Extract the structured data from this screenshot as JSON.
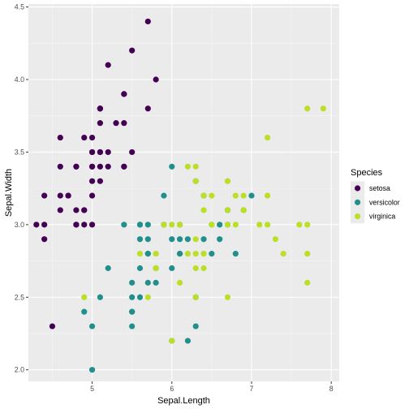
{
  "chart_data": {
    "type": "scatter",
    "title": "",
    "xlabel": "Sepal.Length",
    "ylabel": "Sepal.Width",
    "xlim": [
      4.2,
      8.1
    ],
    "ylim": [
      1.92,
      4.52
    ],
    "x_ticks": [
      5,
      6,
      7,
      8
    ],
    "y_ticks": [
      2.0,
      2.5,
      3.0,
      3.5,
      4.0,
      4.5
    ],
    "x_tick_labels": [
      "5",
      "6",
      "7",
      "8"
    ],
    "y_tick_labels": [
      "2.0",
      "2.5",
      "3.0",
      "3.5",
      "4.0",
      "4.5"
    ],
    "grid": true,
    "legend": {
      "title": "Species",
      "position": "right"
    },
    "series": [
      {
        "name": "setosa",
        "color": "#440154",
        "points": [
          [
            5.1,
            3.5
          ],
          [
            4.9,
            3.0
          ],
          [
            4.7,
            3.2
          ],
          [
            4.6,
            3.1
          ],
          [
            5.0,
            3.6
          ],
          [
            5.4,
            3.9
          ],
          [
            4.6,
            3.4
          ],
          [
            5.0,
            3.4
          ],
          [
            4.4,
            2.9
          ],
          [
            4.9,
            3.1
          ],
          [
            5.4,
            3.7
          ],
          [
            4.8,
            3.4
          ],
          [
            4.8,
            3.0
          ],
          [
            4.3,
            3.0
          ],
          [
            5.8,
            4.0
          ],
          [
            5.7,
            4.4
          ],
          [
            5.4,
            3.9
          ],
          [
            5.1,
            3.5
          ],
          [
            5.7,
            3.8
          ],
          [
            5.1,
            3.8
          ],
          [
            5.4,
            3.4
          ],
          [
            5.1,
            3.7
          ],
          [
            4.6,
            3.6
          ],
          [
            5.1,
            3.3
          ],
          [
            4.8,
            3.4
          ],
          [
            5.0,
            3.0
          ],
          [
            5.0,
            3.4
          ],
          [
            5.2,
            3.5
          ],
          [
            5.2,
            3.4
          ],
          [
            4.7,
            3.2
          ],
          [
            4.8,
            3.1
          ],
          [
            5.4,
            3.4
          ],
          [
            5.2,
            4.1
          ],
          [
            5.5,
            4.2
          ],
          [
            4.9,
            3.1
          ],
          [
            5.0,
            3.2
          ],
          [
            5.5,
            3.5
          ],
          [
            4.9,
            3.6
          ],
          [
            4.4,
            3.0
          ],
          [
            5.1,
            3.4
          ],
          [
            5.0,
            3.5
          ],
          [
            4.5,
            2.3
          ],
          [
            4.4,
            3.2
          ],
          [
            5.0,
            3.5
          ],
          [
            5.1,
            3.8
          ],
          [
            4.8,
            3.0
          ],
          [
            5.1,
            3.8
          ],
          [
            4.6,
            3.2
          ],
          [
            5.3,
            3.7
          ],
          [
            5.0,
            3.3
          ]
        ]
      },
      {
        "name": "versicolor",
        "color": "#21908C",
        "points": [
          [
            7.0,
            3.2
          ],
          [
            6.4,
            3.2
          ],
          [
            6.9,
            3.1
          ],
          [
            5.5,
            2.3
          ],
          [
            6.5,
            2.8
          ],
          [
            5.7,
            2.8
          ],
          [
            6.3,
            3.3
          ],
          [
            4.9,
            2.4
          ],
          [
            6.6,
            2.9
          ],
          [
            5.2,
            2.7
          ],
          [
            5.0,
            2.0
          ],
          [
            5.9,
            3.0
          ],
          [
            6.0,
            2.2
          ],
          [
            6.1,
            2.9
          ],
          [
            5.6,
            2.9
          ],
          [
            6.7,
            3.1
          ],
          [
            5.6,
            3.0
          ],
          [
            5.8,
            2.7
          ],
          [
            6.2,
            2.2
          ],
          [
            5.6,
            2.5
          ],
          [
            5.9,
            3.2
          ],
          [
            6.1,
            2.8
          ],
          [
            6.3,
            2.5
          ],
          [
            6.1,
            2.8
          ],
          [
            6.4,
            2.9
          ],
          [
            6.6,
            3.0
          ],
          [
            6.8,
            2.8
          ],
          [
            6.7,
            3.0
          ],
          [
            6.0,
            2.9
          ],
          [
            5.7,
            2.6
          ],
          [
            5.5,
            2.4
          ],
          [
            5.5,
            2.4
          ],
          [
            5.8,
            2.7
          ],
          [
            6.0,
            2.7
          ],
          [
            5.4,
            3.0
          ],
          [
            6.0,
            3.4
          ],
          [
            6.7,
            3.1
          ],
          [
            6.3,
            2.3
          ],
          [
            5.6,
            3.0
          ],
          [
            5.5,
            2.5
          ],
          [
            5.5,
            2.6
          ],
          [
            6.1,
            3.0
          ],
          [
            5.8,
            2.6
          ],
          [
            5.0,
            2.3
          ],
          [
            5.6,
            2.7
          ],
          [
            5.7,
            3.0
          ],
          [
            5.7,
            2.9
          ],
          [
            6.2,
            2.9
          ],
          [
            5.1,
            2.5
          ],
          [
            5.7,
            2.8
          ]
        ]
      },
      {
        "name": "virginica",
        "color": "#BBDF27",
        "points": [
          [
            6.3,
            3.3
          ],
          [
            5.8,
            2.7
          ],
          [
            7.1,
            3.0
          ],
          [
            6.3,
            2.9
          ],
          [
            6.5,
            3.0
          ],
          [
            7.6,
            3.0
          ],
          [
            4.9,
            2.5
          ],
          [
            7.3,
            2.9
          ],
          [
            6.7,
            2.5
          ],
          [
            7.2,
            3.6
          ],
          [
            6.5,
            3.2
          ],
          [
            6.4,
            2.7
          ],
          [
            6.8,
            3.0
          ],
          [
            5.7,
            2.5
          ],
          [
            5.8,
            2.8
          ],
          [
            6.4,
            3.2
          ],
          [
            6.5,
            3.0
          ],
          [
            7.7,
            3.8
          ],
          [
            7.7,
            2.6
          ],
          [
            6.0,
            2.2
          ],
          [
            6.9,
            3.2
          ],
          [
            5.6,
            2.8
          ],
          [
            7.7,
            2.8
          ],
          [
            6.3,
            2.7
          ],
          [
            6.7,
            3.3
          ],
          [
            7.2,
            3.2
          ],
          [
            6.2,
            2.8
          ],
          [
            6.1,
            3.0
          ],
          [
            6.4,
            2.8
          ],
          [
            7.2,
            3.0
          ],
          [
            7.4,
            2.8
          ],
          [
            7.9,
            3.8
          ],
          [
            6.4,
            2.8
          ],
          [
            6.3,
            2.8
          ],
          [
            6.1,
            2.6
          ],
          [
            7.7,
            3.0
          ],
          [
            6.3,
            3.4
          ],
          [
            6.4,
            3.1
          ],
          [
            6.0,
            3.0
          ],
          [
            6.9,
            3.1
          ],
          [
            6.7,
            3.1
          ],
          [
            6.9,
            3.1
          ],
          [
            5.8,
            2.7
          ],
          [
            6.8,
            3.2
          ],
          [
            6.7,
            3.3
          ],
          [
            6.7,
            3.0
          ],
          [
            6.3,
            2.5
          ],
          [
            6.5,
            3.0
          ],
          [
            6.2,
            3.4
          ],
          [
            5.9,
            3.0
          ]
        ]
      }
    ]
  }
}
